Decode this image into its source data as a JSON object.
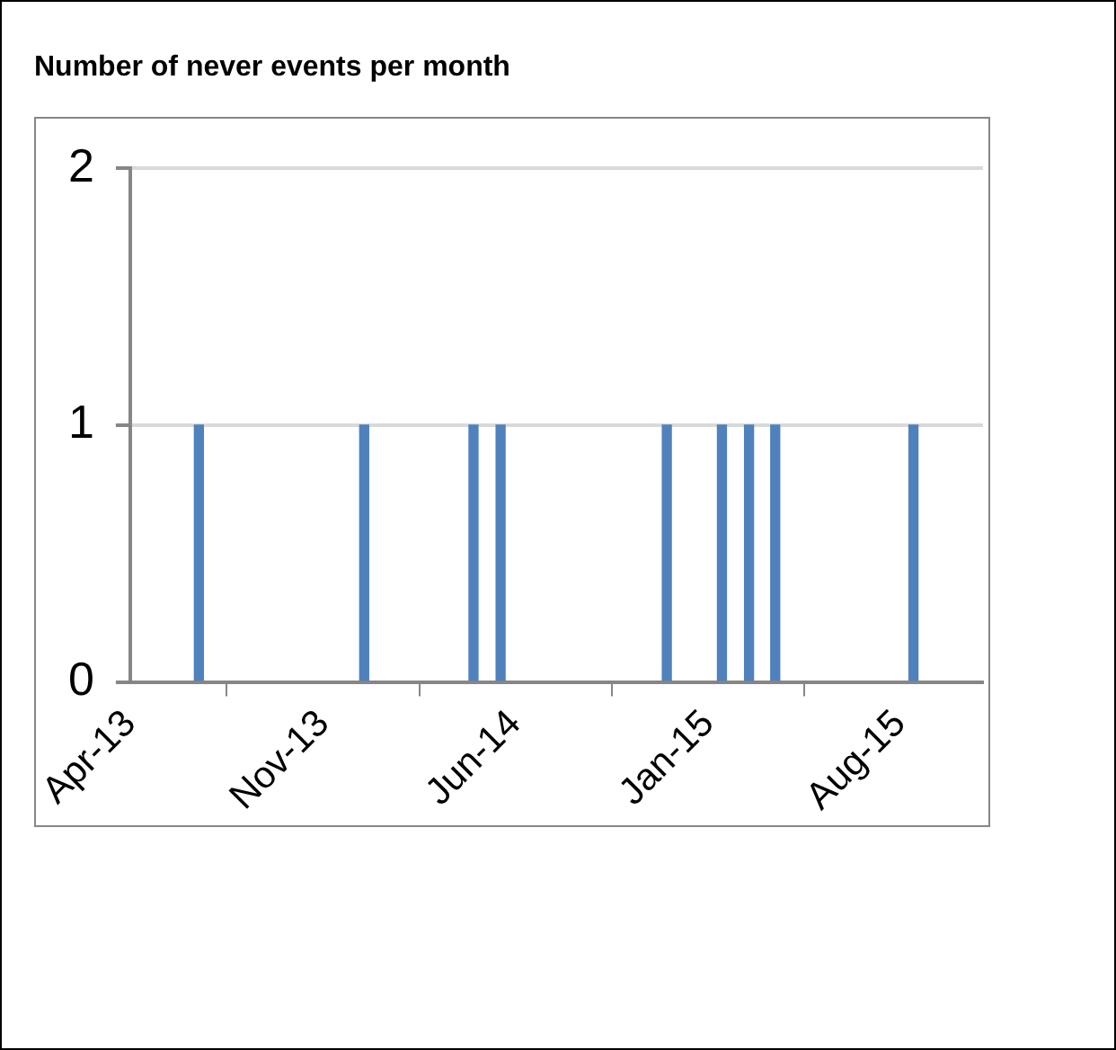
{
  "chart_data": {
    "type": "bar",
    "title": "Number of never events per month",
    "x": [
      "2013-06-16",
      "2013-12-16",
      "2014-04-16",
      "2014-05-16",
      "2014-11-16",
      "2015-01-16",
      "2015-02-15",
      "2015-03-16",
      "2015-08-16"
    ],
    "values": [
      1,
      1,
      1,
      1,
      1,
      1,
      1,
      1,
      1
    ],
    "color": "#4f81bd",
    "xlim": [
      "2013-04-01",
      "2015-11-01"
    ],
    "xticks": [
      {
        "value": "2013-04-01",
        "label": "Apr-13"
      },
      {
        "value": "2013-11-01",
        "label": "Nov-13"
      },
      {
        "value": "2014-06-01",
        "label": "Jun-14"
      },
      {
        "value": "2015-01-01",
        "label": "Jan-15"
      },
      {
        "value": "2015-08-01",
        "label": "Aug-15"
      }
    ],
    "ylim": [
      0,
      2
    ],
    "yticks": [
      0,
      1,
      2
    ],
    "grid": "y",
    "legend": false
  }
}
